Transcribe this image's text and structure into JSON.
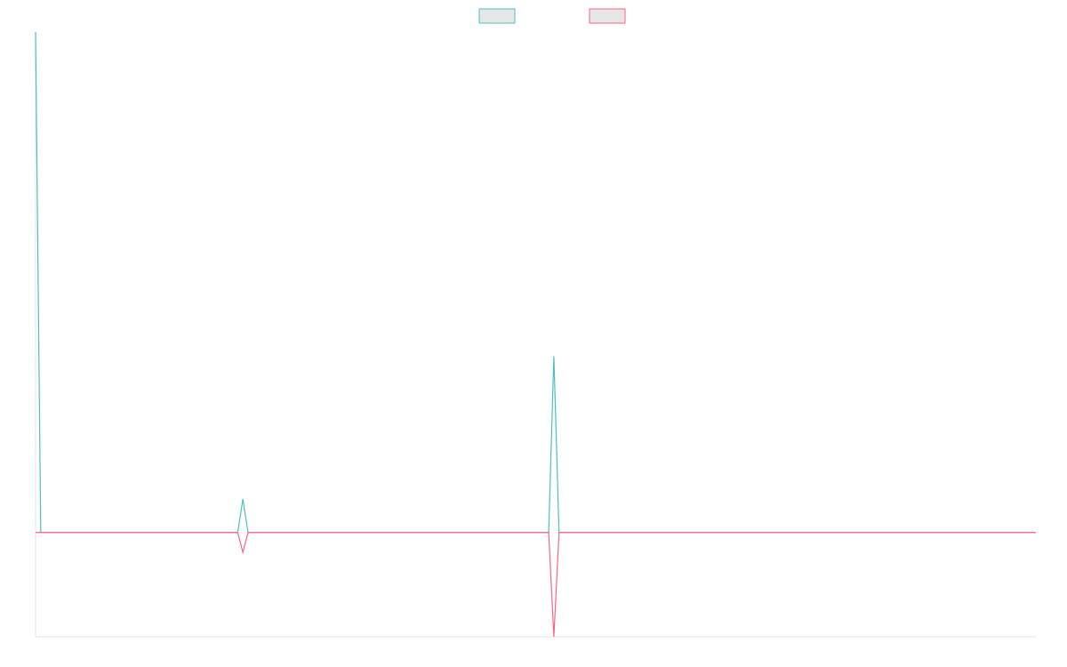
{
  "chart_data": {
    "type": "line",
    "title": "",
    "xlabel": "",
    "ylabel": "",
    "x_count": 194,
    "grid": false,
    "legend": {
      "placement": "top-center",
      "entries": [
        {
          "label": "",
          "color": "#4bc0c0",
          "fill": "#e6e6e6"
        },
        {
          "label": "",
          "color": "#ff6384",
          "fill": "#e6e6e6"
        }
      ]
    },
    "ylim": [
      -1.0,
      4.8
    ],
    "series": [
      {
        "name": "",
        "color": "#4bc0c0",
        "points": [
          [
            0,
            4.8
          ],
          [
            1,
            0
          ],
          [
            39,
            0
          ],
          [
            40,
            0.32
          ],
          [
            41,
            0
          ],
          [
            99,
            0
          ],
          [
            100,
            1.69
          ],
          [
            101,
            0
          ],
          [
            193,
            0
          ]
        ]
      },
      {
        "name": "",
        "color": "#ff6384",
        "points": [
          [
            0,
            0
          ],
          [
            39,
            0
          ],
          [
            40,
            -0.19
          ],
          [
            41,
            0
          ],
          [
            99,
            0
          ],
          [
            100,
            -1.0
          ],
          [
            101,
            0
          ],
          [
            193,
            0
          ]
        ]
      }
    ]
  }
}
